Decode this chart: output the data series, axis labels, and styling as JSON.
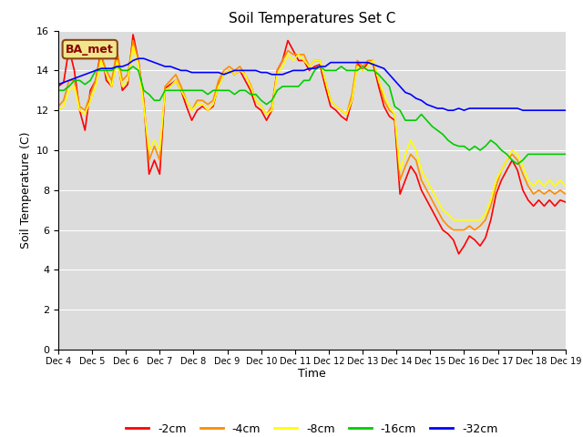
{
  "title": "Soil Temperatures Set C",
  "xlabel": "Time",
  "ylabel": "Soil Temperature (C)",
  "ylim": [
    0,
    16
  ],
  "yticks": [
    0,
    2,
    4,
    6,
    8,
    10,
    12,
    14,
    16
  ],
  "plot_bg": "#dcdcdc",
  "fig_bg": "#ffffff",
  "annotation_text": "BA_met",
  "annotation_color": "#8B0000",
  "annotation_bg": "#f0e68c",
  "annotation_border": "#8B4513",
  "x_labels": [
    "Dec 4",
    "Dec 5",
    "Dec 6",
    "Dec 7",
    "Dec 8",
    "Dec 9",
    "Dec 10",
    "Dec 11",
    "Dec 12",
    "Dec 13",
    "Dec 14",
    "Dec 15",
    "Dec 16",
    "Dec 17",
    "Dec 18",
    "Dec 19"
  ],
  "legend": [
    {
      "label": "-2cm",
      "color": "#ff0000"
    },
    {
      "label": "-4cm",
      "color": "#ff8c00"
    },
    {
      "label": "-8cm",
      "color": "#ffff00"
    },
    {
      "label": "-16cm",
      "color": "#00cc00"
    },
    {
      "label": "-32cm",
      "color": "#0000ff"
    }
  ],
  "series": {
    "-2cm": {
      "color": "#ff0000",
      "data": [
        13.2,
        13.4,
        15.1,
        14.0,
        12.0,
        11.0,
        13.0,
        13.5,
        15.0,
        13.5,
        13.2,
        14.8,
        13.0,
        13.3,
        15.8,
        14.5,
        12.5,
        8.8,
        9.5,
        8.8,
        13.1,
        13.3,
        13.5,
        13.0,
        12.2,
        11.5,
        12.0,
        12.2,
        12.0,
        12.2,
        13.3,
        13.8,
        14.0,
        13.8,
        14.0,
        13.5,
        13.0,
        12.2,
        12.0,
        11.5,
        12.0,
        14.0,
        14.5,
        15.5,
        15.0,
        14.5,
        14.5,
        14.0,
        14.2,
        14.3,
        13.2,
        12.2,
        12.0,
        11.7,
        11.5,
        12.5,
        14.4,
        14.0,
        14.4,
        14.3,
        13.2,
        12.2,
        11.7,
        11.5,
        7.8,
        8.5,
        9.2,
        8.8,
        8.0,
        7.5,
        7.0,
        6.5,
        6.0,
        5.8,
        5.5,
        4.8,
        5.2,
        5.7,
        5.5,
        5.2,
        5.6,
        6.5,
        7.8,
        8.5,
        9.0,
        9.5,
        9.0,
        8.0,
        7.5,
        7.2,
        7.5,
        7.2,
        7.5,
        7.2,
        7.5,
        7.4
      ]
    },
    "-4cm": {
      "color": "#ff8c00",
      "data": [
        12.2,
        12.5,
        13.5,
        13.5,
        12.2,
        12.0,
        12.8,
        13.5,
        14.8,
        14.0,
        13.5,
        15.0,
        13.5,
        13.8,
        15.5,
        14.5,
        12.5,
        9.5,
        10.2,
        9.5,
        13.2,
        13.5,
        13.8,
        13.2,
        12.5,
        12.0,
        12.5,
        12.5,
        12.3,
        12.5,
        13.5,
        14.0,
        14.2,
        14.0,
        14.2,
        13.8,
        13.3,
        12.5,
        12.2,
        11.8,
        12.2,
        14.0,
        14.5,
        15.0,
        14.8,
        14.8,
        14.8,
        14.2,
        14.5,
        14.5,
        13.5,
        12.5,
        12.2,
        12.0,
        11.8,
        12.8,
        14.5,
        14.2,
        14.5,
        14.5,
        13.5,
        12.5,
        12.0,
        11.8,
        8.5,
        9.2,
        9.8,
        9.5,
        8.5,
        8.0,
        7.5,
        7.0,
        6.5,
        6.2,
        6.0,
        6.0,
        6.0,
        6.2,
        6.0,
        6.2,
        6.5,
        7.2,
        8.2,
        9.0,
        9.5,
        9.8,
        9.5,
        8.8,
        8.2,
        7.8,
        8.0,
        7.8,
        8.0,
        7.8,
        8.0,
        7.8
      ]
    },
    "-8cm": {
      "color": "#ffff00",
      "data": [
        12.0,
        12.2,
        13.0,
        13.2,
        12.0,
        11.8,
        12.5,
        13.2,
        14.5,
        13.8,
        13.2,
        14.5,
        13.2,
        13.5,
        15.2,
        14.3,
        12.2,
        10.0,
        10.5,
        10.0,
        13.0,
        13.2,
        13.5,
        13.0,
        12.5,
        12.0,
        12.3,
        12.3,
        12.0,
        12.3,
        13.2,
        13.8,
        14.0,
        13.8,
        14.0,
        13.8,
        13.2,
        12.5,
        12.2,
        11.8,
        12.0,
        13.8,
        14.2,
        14.8,
        14.5,
        14.8,
        14.5,
        14.2,
        14.5,
        14.5,
        13.5,
        12.5,
        12.2,
        12.0,
        11.8,
        12.5,
        14.2,
        14.0,
        14.2,
        14.5,
        13.5,
        12.8,
        12.2,
        11.8,
        9.0,
        9.8,
        10.5,
        10.0,
        9.0,
        8.5,
        8.0,
        7.5,
        7.0,
        6.8,
        6.5,
        6.5,
        6.5,
        6.5,
        6.5,
        6.5,
        6.8,
        7.5,
        8.5,
        9.0,
        9.5,
        10.0,
        9.8,
        9.2,
        8.5,
        8.2,
        8.5,
        8.2,
        8.5,
        8.2,
        8.5,
        8.2
      ]
    },
    "-16cm": {
      "color": "#00cc00",
      "data": [
        13.0,
        13.0,
        13.2,
        13.5,
        13.5,
        13.3,
        13.5,
        14.0,
        14.0,
        14.0,
        14.0,
        14.2,
        14.0,
        14.0,
        14.2,
        14.0,
        13.0,
        12.8,
        12.5,
        12.5,
        13.0,
        13.0,
        13.0,
        13.0,
        13.0,
        13.0,
        13.0,
        13.0,
        12.8,
        13.0,
        13.0,
        13.0,
        13.0,
        12.8,
        13.0,
        13.0,
        12.8,
        12.8,
        12.5,
        12.3,
        12.5,
        13.0,
        13.2,
        13.2,
        13.2,
        13.2,
        13.5,
        13.5,
        14.0,
        14.2,
        14.0,
        14.0,
        14.0,
        14.2,
        14.0,
        14.0,
        14.0,
        14.2,
        14.0,
        14.0,
        13.8,
        13.5,
        13.2,
        12.2,
        12.0,
        11.5,
        11.5,
        11.5,
        11.8,
        11.5,
        11.2,
        11.0,
        10.8,
        10.5,
        10.3,
        10.2,
        10.2,
        10.0,
        10.2,
        10.0,
        10.2,
        10.5,
        10.3,
        10.0,
        9.8,
        9.5,
        9.3,
        9.5,
        9.8,
        9.8,
        9.8,
        9.8,
        9.8,
        9.8,
        9.8,
        9.8
      ]
    },
    "-32cm": {
      "color": "#0000ff",
      "data": [
        13.3,
        13.4,
        13.5,
        13.6,
        13.7,
        13.8,
        13.9,
        14.0,
        14.1,
        14.1,
        14.1,
        14.2,
        14.2,
        14.3,
        14.5,
        14.6,
        14.6,
        14.5,
        14.4,
        14.3,
        14.2,
        14.2,
        14.1,
        14.0,
        14.0,
        13.9,
        13.9,
        13.9,
        13.9,
        13.9,
        13.9,
        13.8,
        13.9,
        14.0,
        14.0,
        14.0,
        14.0,
        14.0,
        13.9,
        13.9,
        13.8,
        13.8,
        13.8,
        13.9,
        14.0,
        14.0,
        14.0,
        14.1,
        14.1,
        14.2,
        14.2,
        14.4,
        14.4,
        14.4,
        14.4,
        14.4,
        14.4,
        14.4,
        14.4,
        14.3,
        14.2,
        14.1,
        13.8,
        13.5,
        13.2,
        12.9,
        12.8,
        12.6,
        12.5,
        12.3,
        12.2,
        12.1,
        12.1,
        12.0,
        12.0,
        12.1,
        12.0,
        12.1,
        12.1,
        12.1,
        12.1,
        12.1,
        12.1,
        12.1,
        12.1,
        12.1,
        12.1,
        12.0,
        12.0,
        12.0,
        12.0,
        12.0,
        12.0,
        12.0,
        12.0,
        12.0
      ]
    }
  }
}
